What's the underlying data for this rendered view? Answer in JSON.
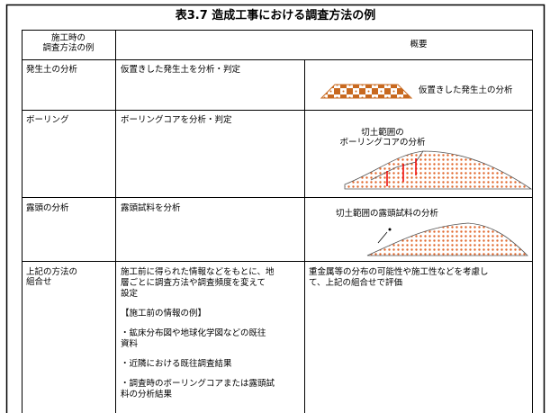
{
  "title": "表3.7  造成工事における調査方法の例",
  "table": {
    "header": {
      "method": [
        "施工時の",
        "調査方法の例"
      ],
      "summary": "概要"
    },
    "rows": [
      {
        "method": [
          "発生土の分析"
        ],
        "summary": [
          [
            "仮置きした発生土を分析・判定"
          ]
        ],
        "col3": [
          "仮置きした発生土の分析"
        ]
      },
      {
        "method": [
          "ボーリング"
        ],
        "summary": [
          [
            "ボーリングコアを分析・判定"
          ]
        ],
        "col3": [
          "切土範囲の",
          "ボーリングコアの分析"
        ]
      },
      {
        "method": [
          "露頭の分析"
        ],
        "summary": [
          [
            "露頭試料を分析"
          ]
        ],
        "col3": [
          "切土範囲の露頭試料の分析"
        ]
      },
      {
        "method": [
          "上記の方法の",
          "組合せ"
        ],
        "summary": [
          [
            "施工前に得られた情報などをもとに、地",
            "層ごとに調査方法や調査頻度を変えて",
            "設定"
          ],
          [
            "【施工前の情報の例】"
          ],
          [
            "・鉱床分布図や地球化学図などの既往",
            "資料"
          ],
          [
            "・近隣における既往調査結果"
          ],
          [
            "・調査時のボーリングコアまたは露頭試",
            "料の分析結果"
          ]
        ],
        "col3": [
          "重金属等の分布の可能性や施工性などを考慮し",
          "て、上記の組合せで評価"
        ]
      }
    ]
  }
}
